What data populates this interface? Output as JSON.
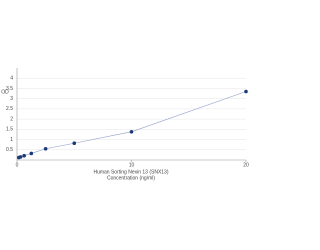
{
  "chart_data": {
    "type": "scatter",
    "title": "Human Sorting Nexin 13 (SNX13)",
    "x_label": "Concentration (ng/ml)",
    "y_label": "OD",
    "series": [
      {
        "x": [
          0.156,
          0.312,
          0.625,
          1.25,
          2.5,
          5,
          10,
          20
        ],
        "values": [
          0.12,
          0.15,
          0.21,
          0.32,
          0.55,
          0.82,
          1.38,
          3.35
        ],
        "color": "#1b3a78",
        "line_color": "#8c9cc8"
      }
    ],
    "xlim": [
      0,
      20
    ],
    "xticks": [
      0,
      10,
      20
    ],
    "ylim": [
      0,
      4.5
    ],
    "yticks": [
      0.5,
      1,
      1.5,
      2,
      2.5,
      3,
      3.5,
      4
    ],
    "grid": true
  }
}
